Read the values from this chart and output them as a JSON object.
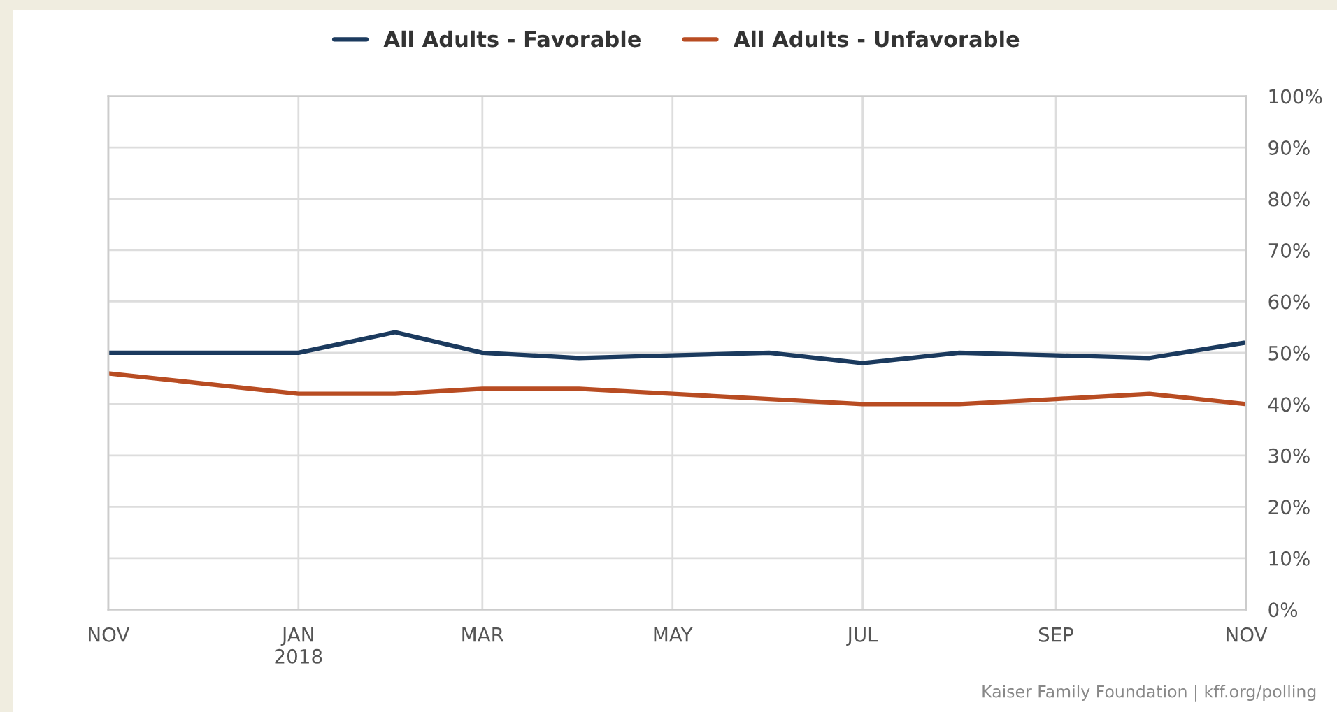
{
  "chart_data": {
    "type": "line",
    "x": [
      "2017-11",
      "2018-01",
      "2018-02",
      "2018-03",
      "2018-04",
      "2018-05",
      "2018-06",
      "2018-07",
      "2018-08",
      "2018-09",
      "2018-10",
      "2018-11"
    ],
    "series": [
      {
        "name": "All Adults - Favorable",
        "color": "#1b3a5e",
        "values": [
          50,
          50,
          54,
          50,
          49,
          49.5,
          50,
          48,
          50,
          49.5,
          49,
          52
        ]
      },
      {
        "name": "All Adults - Unfavorable",
        "color": "#b84c22",
        "values": [
          46,
          42,
          42,
          43,
          43,
          42,
          41,
          40,
          40,
          41,
          42,
          40
        ]
      }
    ],
    "xlim": [
      "2017-11",
      "2018-11"
    ],
    "xticks": [
      {
        "value": "2017-11",
        "label": "NOV"
      },
      {
        "value": "2018-01",
        "label": "JAN\n2018"
      },
      {
        "value": "2018-03",
        "label": "MAR"
      },
      {
        "value": "2018-05",
        "label": "MAY"
      },
      {
        "value": "2018-07",
        "label": "JUL"
      },
      {
        "value": "2018-09",
        "label": "SEP"
      },
      {
        "value": "2018-11",
        "label": "NOV"
      }
    ],
    "ylim": [
      0,
      100
    ],
    "yticks": [
      {
        "value": 0,
        "label": "0%"
      },
      {
        "value": 10,
        "label": "10%"
      },
      {
        "value": 20,
        "label": "20%"
      },
      {
        "value": 30,
        "label": "30%"
      },
      {
        "value": 40,
        "label": "40%"
      },
      {
        "value": 50,
        "label": "50%"
      },
      {
        "value": 60,
        "label": "60%"
      },
      {
        "value": 70,
        "label": "70%"
      },
      {
        "value": 80,
        "label": "80%"
      },
      {
        "value": 90,
        "label": "90%"
      },
      {
        "value": 100,
        "label": "100%"
      }
    ],
    "grid": true,
    "legend": "top",
    "marker": "none",
    "line_style": "solid",
    "annotations": [
      "Kaiser Family Foundation | kff.org/polling"
    ]
  }
}
